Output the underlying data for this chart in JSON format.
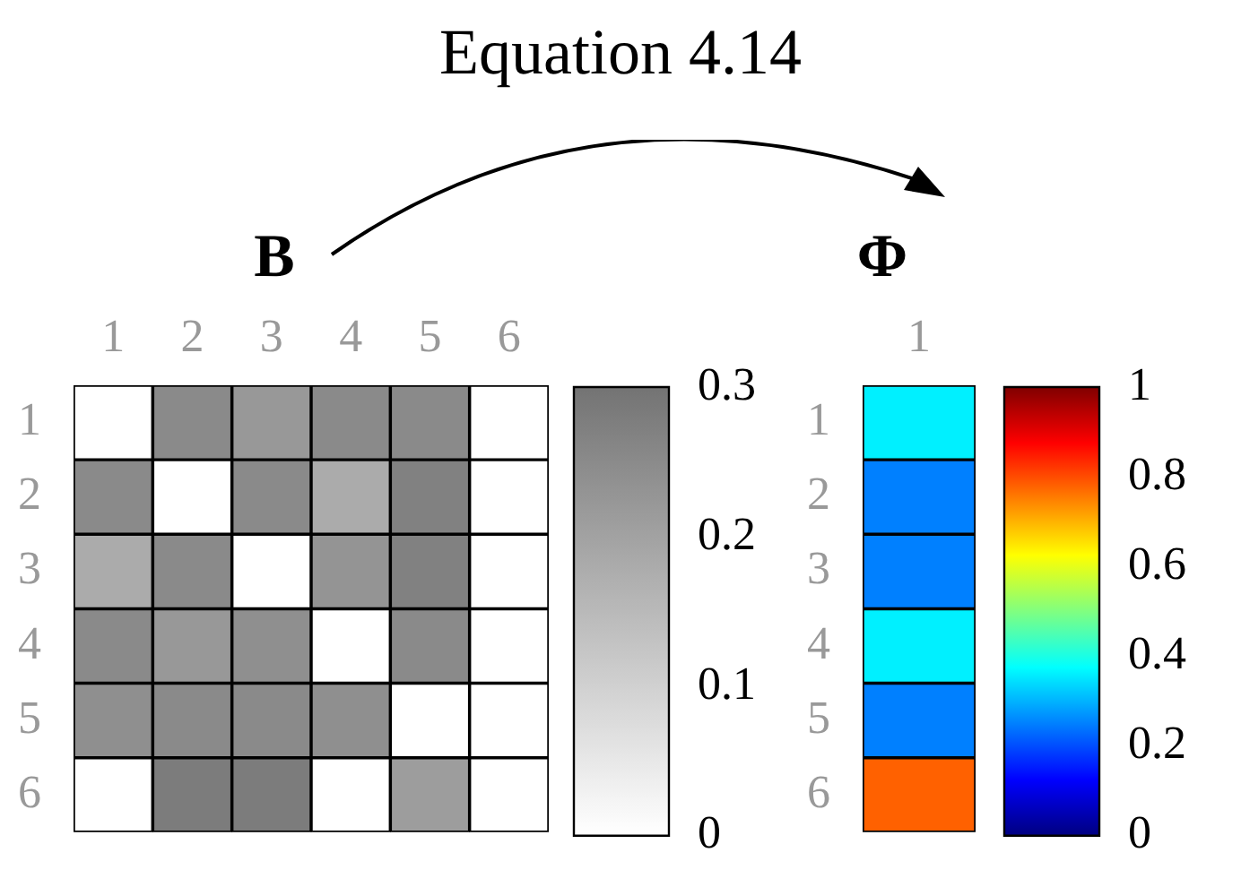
{
  "chart_data": [
    {
      "type": "heatmap",
      "title": "B",
      "annotations": [
        "Equation 4.14"
      ],
      "categories": [
        "1",
        "2",
        "3",
        "4",
        "5",
        "6"
      ],
      "y_categories": [
        "1",
        "2",
        "3",
        "4",
        "5",
        "6"
      ],
      "cells": [
        [
          0,
          0.25,
          0.22,
          0.25,
          0.25,
          0
        ],
        [
          0.25,
          0,
          0.25,
          0.18,
          0.27,
          0
        ],
        [
          0.18,
          0.25,
          0,
          0.23,
          0.27,
          0
        ],
        [
          0.25,
          0.22,
          0.24,
          0,
          0.25,
          0
        ],
        [
          0.24,
          0.25,
          0.25,
          0.24,
          0,
          0
        ],
        [
          0,
          0.28,
          0.28,
          0,
          0.21,
          0
        ]
      ],
      "clim": [
        0,
        0.3
      ],
      "cticks": [
        0,
        0.1,
        0.2,
        0.3
      ]
    },
    {
      "type": "heatmap",
      "title": "Φ",
      "categories": [
        "1"
      ],
      "y_categories": [
        "1",
        "2",
        "3",
        "4",
        "5",
        "6"
      ],
      "cells": [
        [
          0.36
        ],
        [
          0.25
        ],
        [
          0.25
        ],
        [
          0.36
        ],
        [
          0.25
        ],
        [
          0.78
        ]
      ],
      "clim": [
        0,
        1
      ],
      "cticks": [
        0,
        0.2,
        0.4,
        0.6,
        0.8,
        1
      ]
    }
  ]
}
